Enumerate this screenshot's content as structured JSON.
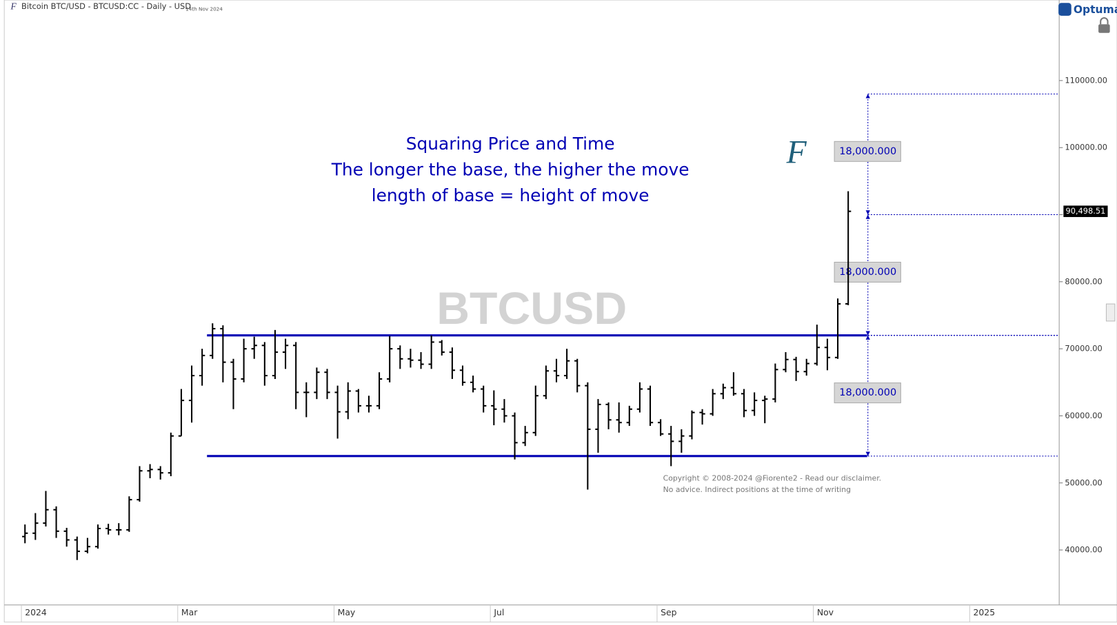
{
  "chart_data": {
    "type": "ohlc",
    "title": "Bitcoin BTC/USD - BTCUSD:CC - Daily - USD",
    "date": "14th Nov 2024",
    "brand": "Optuma",
    "watermark": "BTCUSD",
    "annotation": [
      "Squaring Price and Time",
      "The longer the base, the higher the move",
      "length of base = height of move"
    ],
    "copyright": [
      "Copyright © 2008-2024 @Fiorente2 -  Read our disclaimer.",
      "No advice. Indirect positions at the time of writing"
    ],
    "color": "#000000",
    "level_color": "#0000b4",
    "categories": [
      "2024",
      null,
      null,
      null,
      null,
      null,
      null,
      null,
      null,
      null,
      null,
      null,
      null,
      null,
      null,
      "Mar",
      null,
      null,
      null,
      null,
      null,
      null,
      null,
      null,
      null,
      null,
      null,
      null,
      null,
      null,
      "May",
      null,
      null,
      null,
      null,
      null,
      null,
      null,
      null,
      null,
      null,
      null,
      null,
      null,
      null,
      "Jul",
      null,
      null,
      null,
      null,
      null,
      null,
      null,
      null,
      null,
      null,
      null,
      null,
      null,
      null,
      null,
      "Sep",
      null,
      null,
      null,
      null,
      null,
      null,
      null,
      null,
      null,
      null,
      null,
      null,
      null,
      null,
      "Nov",
      null,
      null,
      null,
      null,
      null,
      null,
      null,
      null,
      null,
      null,
      null,
      null,
      null,
      null,
      "2025",
      null,
      null,
      null,
      null,
      null,
      null,
      null
    ],
    "series": [
      {
        "name": "open",
        "values": [
          42000,
          42500,
          44000,
          46000,
          42800,
          41500,
          39800,
          40500,
          43200,
          43000,
          43000,
          47500,
          51800,
          52000,
          51500,
          57000,
          62300,
          66000,
          69000,
          73000,
          68000,
          65500,
          70000,
          70500,
          66000,
          69500,
          70500,
          63500,
          63500,
          66500,
          63500,
          60600,
          63700,
          61500,
          61500,
          65500,
          70000,
          68500,
          68300,
          67700,
          71000,
          69500,
          66800,
          65000,
          64000,
          61500,
          61000,
          60000,
          56000,
          57500,
          63000,
          66700,
          66000,
          68200,
          64500,
          58000,
          61700,
          59400,
          59000,
          61000,
          64000,
          59000,
          57300,
          56200,
          57000,
          60500,
          60300,
          63300,
          64200,
          63300,
          60800,
          62300,
          62500,
          66900,
          68400,
          66600,
          67800,
          70200,
          68700,
          76700,
          null,
          null,
          null,
          null,
          null,
          null,
          null,
          null,
          null,
          null,
          null,
          null,
          null,
          null,
          null,
          null,
          null,
          null,
          null
        ]
      },
      {
        "name": "high",
        "values": [
          43800,
          45500,
          48800,
          46500,
          43300,
          42000,
          41800,
          43800,
          43900,
          44000,
          48000,
          52500,
          52800,
          52500,
          57500,
          64000,
          67500,
          70000,
          73800,
          73500,
          68500,
          71500,
          71800,
          71000,
          72800,
          71500,
          71000,
          65000,
          67200,
          67000,
          64500,
          65000,
          64000,
          63000,
          66500,
          71900,
          70500,
          70000,
          69500,
          72000,
          71300,
          70200,
          67500,
          66000,
          64500,
          63800,
          62500,
          60500,
          58500,
          64500,
          67500,
          68500,
          70000,
          68500,
          65000,
          62500,
          62000,
          62000,
          61500,
          65000,
          64500,
          59500,
          58500,
          58000,
          60800,
          61000,
          64000,
          64800,
          66500,
          64000,
          63500,
          63000,
          67800,
          69500,
          68800,
          68500,
          73600,
          71500,
          77500,
          93500,
          null,
          null,
          null,
          null,
          null,
          null,
          null,
          null,
          null,
          null,
          null,
          null,
          null,
          null,
          null,
          null,
          null,
          null,
          null
        ]
      },
      {
        "name": "low",
        "values": [
          41000,
          41500,
          43500,
          41800,
          40500,
          38500,
          39500,
          40200,
          42300,
          42200,
          42700,
          47200,
          50700,
          50500,
          51000,
          57000,
          59000,
          64500,
          68500,
          65000,
          61000,
          65000,
          68500,
          64500,
          65500,
          67000,
          61000,
          59800,
          62500,
          62500,
          56600,
          59500,
          60500,
          60500,
          61000,
          65000,
          67000,
          67200,
          67000,
          67000,
          69000,
          65500,
          64500,
          63500,
          60500,
          58600,
          59000,
          53500,
          55500,
          57000,
          62500,
          65000,
          65500,
          63500,
          49000,
          54500,
          58000,
          57500,
          58500,
          60500,
          58500,
          57000,
          52500,
          54500,
          56500,
          58700,
          60000,
          62500,
          63000,
          59800,
          60000,
          58900,
          62000,
          66500,
          65200,
          66000,
          67500,
          66800,
          68500,
          76500,
          null,
          null,
          null,
          null,
          null,
          null,
          null,
          null,
          null,
          null,
          null,
          null,
          null,
          null,
          null,
          null,
          null,
          null,
          null
        ]
      },
      {
        "name": "close",
        "values": [
          42500,
          44000,
          46000,
          42800,
          41500,
          39800,
          40500,
          43200,
          43000,
          43000,
          47500,
          51800,
          52000,
          51500,
          57000,
          62300,
          66000,
          69000,
          73000,
          68000,
          65500,
          70000,
          70500,
          66000,
          69500,
          70500,
          63500,
          63500,
          66500,
          63500,
          60600,
          63700,
          61500,
          61500,
          65500,
          70000,
          68500,
          68300,
          67700,
          71000,
          69500,
          66800,
          65000,
          64000,
          61500,
          61000,
          60000,
          56000,
          57500,
          63000,
          66700,
          66000,
          68200,
          64500,
          58000,
          61700,
          59400,
          59000,
          61000,
          64000,
          59000,
          57300,
          56200,
          57000,
          60500,
          60300,
          63300,
          64200,
          63300,
          60800,
          62300,
          62500,
          66900,
          68400,
          66600,
          67800,
          70200,
          68700,
          76700,
          90498.51,
          null,
          null,
          null,
          null,
          null,
          null,
          null,
          null,
          null,
          null,
          null,
          null,
          null,
          null,
          null,
          null,
          null,
          null,
          null
        ]
      }
    ],
    "last_price": {
      "value": 90498.51,
      "label": "90,498.51"
    },
    "levels": [
      72000,
      54000
    ],
    "measured_moves": [
      {
        "from": 90000,
        "to": 108000,
        "label": "18,000.000"
      },
      {
        "from": 72000,
        "to": 90000,
        "label": "18,000.000"
      },
      {
        "from": 54000,
        "to": 72000,
        "label": "18,000.000"
      }
    ],
    "ylim": [
      31800,
      122000
    ],
    "yticks": [
      {
        "value": 40000,
        "label": "40000.00"
      },
      {
        "value": 50000,
        "label": "50000.00"
      },
      {
        "value": 60000,
        "label": "60000.00"
      },
      {
        "value": 70000,
        "label": "70000.00"
      },
      {
        "value": 80000,
        "label": "80000.00"
      },
      {
        "value": 90000,
        "label": "90000.00"
      },
      {
        "value": 100000,
        "label": "100000.00"
      },
      {
        "value": 110000,
        "label": "110000.00"
      }
    ]
  }
}
